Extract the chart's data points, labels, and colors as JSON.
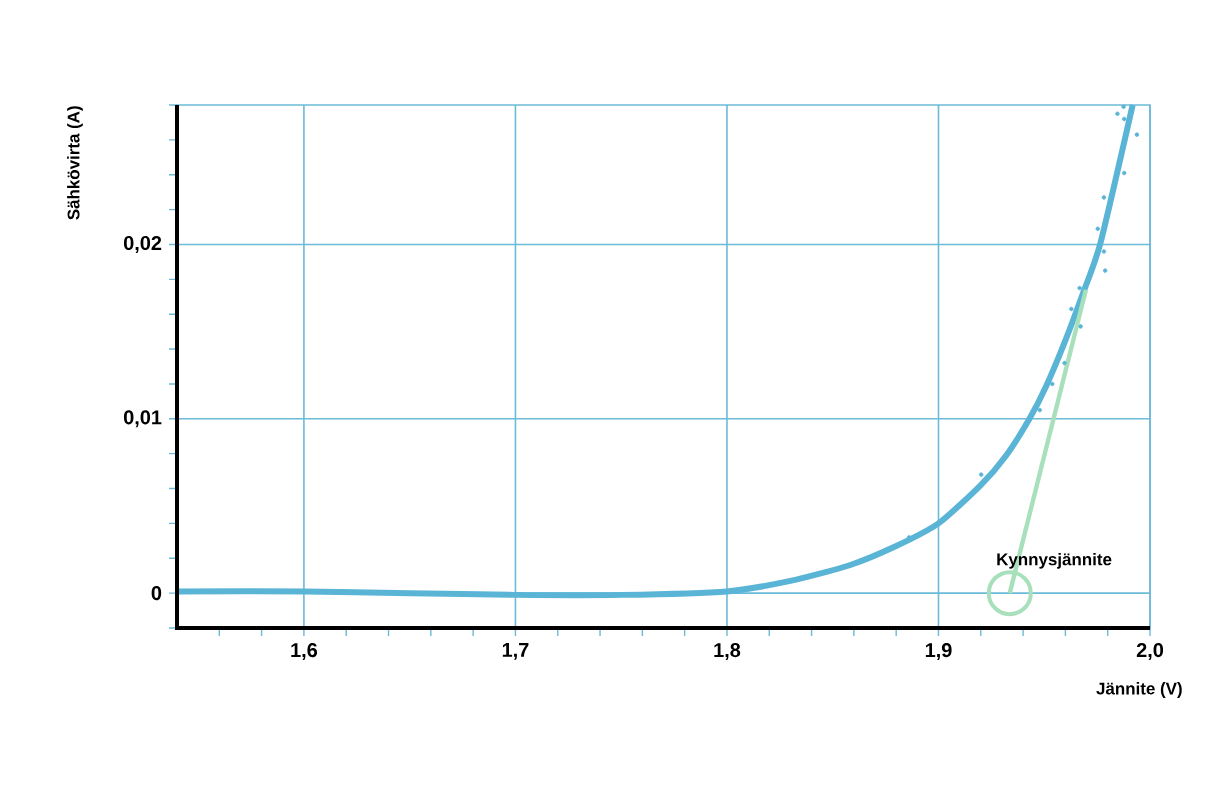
{
  "chart_data": {
    "type": "line",
    "xlabel": "Jännite (V)",
    "ylabel": "Sähkövirta (A)",
    "xlim": [
      1.54,
      2.0
    ],
    "ylim": [
      -0.002,
      0.028
    ],
    "xticks": [
      {
        "value": 1.56,
        "label": null
      },
      {
        "value": 1.58,
        "label": null
      },
      {
        "value": 1.6,
        "label": "1,6"
      },
      {
        "value": 1.62,
        "label": null
      },
      {
        "value": 1.64,
        "label": null
      },
      {
        "value": 1.66,
        "label": null
      },
      {
        "value": 1.68,
        "label": null
      },
      {
        "value": 1.7,
        "label": "1,7"
      },
      {
        "value": 1.72,
        "label": null
      },
      {
        "value": 1.74,
        "label": null
      },
      {
        "value": 1.76,
        "label": null
      },
      {
        "value": 1.78,
        "label": null
      },
      {
        "value": 1.8,
        "label": "1,8"
      },
      {
        "value": 1.82,
        "label": null
      },
      {
        "value": 1.84,
        "label": null
      },
      {
        "value": 1.86,
        "label": null
      },
      {
        "value": 1.88,
        "label": null
      },
      {
        "value": 1.9,
        "label": "1,9"
      },
      {
        "value": 1.92,
        "label": null
      },
      {
        "value": 1.94,
        "label": null
      },
      {
        "value": 1.96,
        "label": null
      },
      {
        "value": 1.98,
        "label": null
      },
      {
        "value": 2.0,
        "label": "2,0"
      }
    ],
    "yticks": [
      {
        "value": -0.002,
        "label": null
      },
      0,
      {
        "value": 0.002,
        "label": null
      },
      {
        "value": 0.004,
        "label": null
      },
      {
        "value": 0.006,
        "label": null
      },
      {
        "value": 0.008,
        "label": null
      },
      {
        "value": 0.01,
        "label": "0,01"
      },
      {
        "value": 0.012,
        "label": null
      },
      {
        "value": 0.014,
        "label": null
      },
      {
        "value": 0.016,
        "label": null
      },
      {
        "value": 0.018,
        "label": null
      },
      {
        "value": 0.02,
        "label": "0,02"
      },
      {
        "value": 0.022,
        "label": null
      },
      {
        "value": 0.024,
        "label": null
      },
      {
        "value": 0.026,
        "label": null
      },
      {
        "value": 0.028,
        "label": null
      }
    ],
    "grid": true,
    "series": [
      {
        "color": "#5ab4d6",
        "x": [
          1.54,
          1.6,
          1.65,
          1.7,
          1.75,
          1.8,
          1.83,
          1.858,
          1.88,
          1.9,
          1.92,
          1.932,
          1.943,
          1.951,
          1.96,
          1.968,
          1.9766,
          1.9918
        ],
        "values": [
          0.0001,
          0.0001,
          0.0,
          -0.0001,
          -0.0001,
          0.0001,
          0.0007,
          0.0016,
          0.0027,
          0.004,
          0.0062,
          0.0079,
          0.01,
          0.0119,
          0.0145,
          0.0171,
          0.0201,
          0.028
        ]
      },
      {
        "type": "scatter",
        "color": "#5ab4d6",
        "x": [
          1.8861,
          1.9202,
          1.9479,
          1.9538,
          1.9596,
          1.9672,
          1.9628,
          1.9667,
          1.9788,
          1.9782,
          1.9753,
          1.9782,
          1.9878,
          1.9938,
          1.9846,
          1.9878,
          1.9875
        ],
        "values": [
          0.0032,
          0.0068,
          0.0105,
          0.012,
          0.0132,
          0.0153,
          0.0163,
          0.0175,
          0.0185,
          0.0196,
          0.0209,
          0.0227,
          0.0241,
          0.0263,
          0.0275,
          0.0272,
          0.0279
        ]
      },
      {
        "type": "line",
        "color": "#a8e0bc",
        "x": [
          1.9337,
          1.9697
        ],
        "values": [
          0,
          0.0174
        ]
      }
    ],
    "annotations": [
      {
        "text": "Kynnysjännite",
        "x": 1.9337,
        "y": 0
      }
    ]
  }
}
